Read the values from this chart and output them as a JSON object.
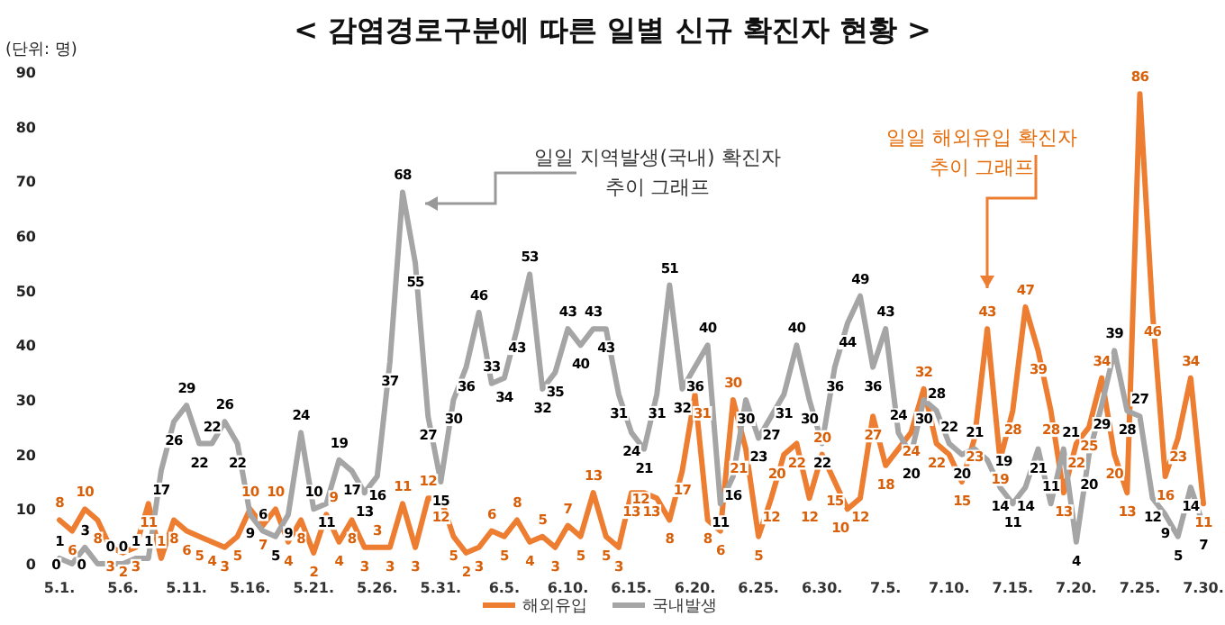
{
  "chart_data": {
    "type": "line",
    "title": "< 감염경로구분에 따른 일별  신규 확진자 현황 >",
    "ylabel": "(단위: 명)",
    "categories": [
      "5.1.",
      null,
      null,
      null,
      null,
      "5.6.",
      null,
      null,
      null,
      null,
      "5.11.",
      null,
      null,
      null,
      null,
      "5.16.",
      null,
      null,
      null,
      null,
      "5.21.",
      null,
      null,
      null,
      null,
      "5.26.",
      null,
      null,
      null,
      null,
      "5.31.",
      null,
      null,
      null,
      null,
      "6.5.",
      null,
      null,
      null,
      null,
      "6.10.",
      null,
      null,
      null,
      null,
      "6.15.",
      null,
      null,
      null,
      null,
      "6.20.",
      null,
      null,
      null,
      null,
      "6.25.",
      null,
      null,
      null,
      null,
      "6.30.",
      null,
      null,
      null,
      null,
      "7.5.",
      null,
      null,
      null,
      null,
      "7.10.",
      null,
      null,
      null,
      null,
      "7.15.",
      null,
      null,
      null,
      null,
      "7.20.",
      null,
      null,
      null,
      null,
      "7.25.",
      null,
      null,
      null,
      null,
      "7.30."
    ],
    "series": [
      {
        "name": "해외유입",
        "color": "#ed7d31",
        "values": [
          8,
          6,
          10,
          8,
          3,
          2,
          3,
          11,
          1,
          8,
          6,
          5,
          4,
          3,
          5,
          10,
          7,
          10,
          4,
          8,
          2,
          9,
          4,
          8,
          3,
          3,
          3,
          11,
          3,
          12,
          12,
          5,
          2,
          3,
          6,
          5,
          8,
          4,
          5,
          3,
          7,
          5,
          13,
          5,
          3,
          13,
          13,
          12,
          8,
          17,
          31,
          8,
          6,
          30,
          21,
          5,
          12,
          20,
          22,
          12,
          20,
          15,
          10,
          12,
          27,
          18,
          21,
          24,
          32,
          22,
          20,
          15,
          23,
          43,
          19,
          28,
          47,
          39,
          28,
          13,
          22,
          25,
          34,
          20,
          13,
          86,
          46,
          16,
          23,
          34,
          11
        ],
        "value_labels": [
          "8",
          "6",
          "10",
          "8",
          "3",
          "2",
          "3",
          "11",
          "1",
          "8",
          "6",
          "5",
          "4",
          "3",
          "5",
          "10",
          "7",
          "10",
          "4",
          "8",
          "2",
          "9",
          "4",
          "8",
          "3",
          "3",
          "3",
          "11",
          "3",
          "12",
          "12",
          "5",
          "2",
          "3",
          "6",
          "5",
          "8",
          "4",
          "5",
          "3",
          "7",
          "5",
          "13",
          "5",
          "3",
          "13",
          "13",
          "12",
          "8",
          "17",
          "31",
          "8",
          "6",
          "30",
          "21",
          "5",
          "12",
          "20",
          "22",
          "12",
          "20",
          "15",
          "10",
          "12",
          "27",
          "18",
          null,
          "24",
          "32",
          "22",
          null,
          "15",
          "23",
          "43",
          "19",
          "28",
          "47",
          "39",
          "28",
          "13",
          "22",
          "25",
          "34",
          "20",
          "13",
          "86",
          "46",
          "16",
          "23",
          "34",
          "11"
        ]
      },
      {
        "name": "국내발생",
        "color": "#a5a5a5",
        "values": [
          1,
          0,
          3,
          0,
          0,
          0,
          1,
          1,
          17,
          26,
          29,
          22,
          22,
          26,
          22,
          9,
          6,
          5,
          9,
          24,
          10,
          11,
          19,
          17,
          13,
          16,
          37,
          68,
          55,
          27,
          15,
          30,
          36,
          46,
          33,
          34,
          43,
          53,
          32,
          35,
          43,
          40,
          43,
          43,
          31,
          24,
          21,
          31,
          51,
          32,
          36,
          40,
          11,
          16,
          30,
          23,
          27,
          31,
          40,
          30,
          22,
          36,
          44,
          49,
          36,
          43,
          24,
          20,
          30,
          28,
          22,
          20,
          21,
          19,
          14,
          11,
          14,
          21,
          11,
          21,
          4,
          20,
          29,
          39,
          28,
          27,
          12,
          9,
          5,
          14,
          7
        ],
        "value_labels": [
          "1",
          "0",
          "3",
          "0",
          "0",
          "0",
          "1",
          "1",
          "17",
          "26",
          "29",
          "22",
          "22",
          "26",
          "22",
          "9",
          "6",
          "5",
          "9",
          "24",
          "10",
          "11",
          "19",
          "17",
          "13",
          "16",
          "37",
          "68",
          "55",
          "27",
          "15",
          "30",
          "36",
          "46",
          "33",
          "34",
          "43",
          "53",
          "32",
          "35",
          "43",
          "40",
          "43",
          "43",
          "31",
          "24",
          "21",
          "31",
          "51",
          "32",
          "36",
          "40",
          "11",
          "16",
          "30",
          "23",
          "27",
          "31",
          "40",
          "30",
          "22",
          "36",
          "44",
          "49",
          "36",
          "43",
          "24",
          "20",
          "30",
          "28",
          "22",
          "20",
          "21",
          "19",
          "14",
          "11",
          "14",
          "21",
          "11",
          "21",
          "4",
          "20",
          "29",
          "39",
          "28",
          "27",
          "12",
          "9",
          "5",
          "14",
          "7"
        ]
      }
    ],
    "ylim": [
      0,
      90
    ],
    "yticks": [
      0,
      10,
      20,
      30,
      40,
      50,
      60,
      70,
      80,
      90
    ],
    "grid": false,
    "legend": "bottom",
    "marker": "none",
    "line_style": "solid",
    "annotations": [
      "일일 지역발생(국내) 확진자\n추이 그래프",
      "일일 해외유입 확진자\n추이 그래프"
    ]
  }
}
